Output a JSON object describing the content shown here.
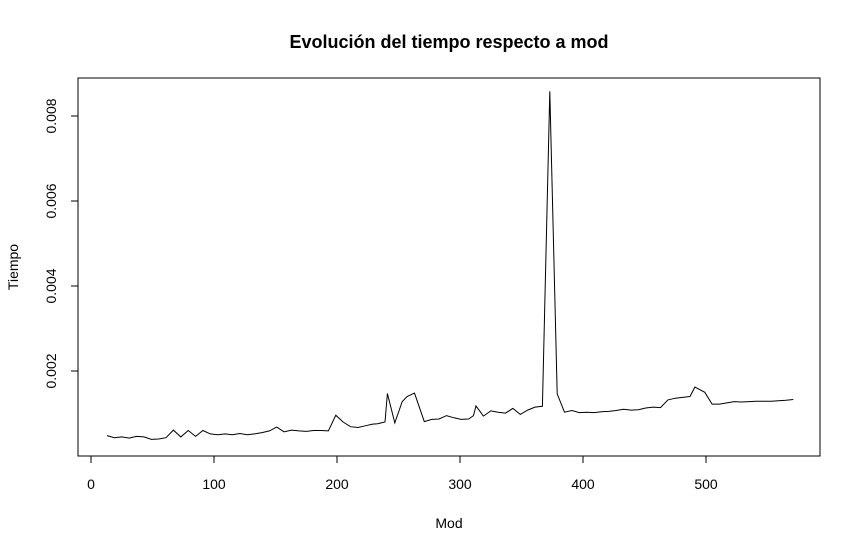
{
  "chart_data": {
    "type": "line",
    "title": "Evolución del tiempo respecto a mod",
    "xlabel": "Mod",
    "ylabel": "Tiempo",
    "xlim": [
      0,
      580
    ],
    "ylim": [
      0.0,
      0.009
    ],
    "x_ticks": [
      0,
      100,
      200,
      300,
      400,
      500
    ],
    "x_tick_labels": [
      "0",
      "100",
      "200",
      "300",
      "400",
      "500"
    ],
    "y_ticks": [
      0.002,
      0.004,
      0.006,
      0.008
    ],
    "y_tick_labels": [
      "0.002",
      "0.004",
      "0.006",
      "0.008"
    ],
    "grid": false,
    "series": [
      {
        "color": "#000000",
        "x": [
          13,
          19,
          25,
          31,
          37,
          43,
          49,
          55,
          61,
          67,
          73,
          79,
          85,
          91,
          97,
          103,
          109,
          115,
          121,
          127,
          133,
          139,
          145,
          151,
          157,
          163,
          169,
          175,
          181,
          187,
          193,
          199,
          205,
          211,
          217,
          223,
          229,
          233,
          239,
          241,
          247,
          253,
          257,
          263,
          271,
          277,
          283,
          289,
          295,
          301,
          307,
          311,
          313,
          319,
          325,
          331,
          337,
          343,
          349,
          355,
          361,
          367,
          373,
          379,
          385,
          391,
          397,
          403,
          409,
          415,
          421,
          427,
          433,
          439,
          445,
          451,
          457,
          463,
          469,
          475,
          481,
          487,
          491,
          499,
          505,
          511,
          517,
          523,
          529,
          535,
          541,
          547,
          553,
          559,
          565,
          571
        ],
        "y": [
          0.00048,
          0.00043,
          0.00045,
          0.00042,
          0.00046,
          0.00045,
          0.00039,
          0.0004,
          0.00043,
          0.00061,
          0.00045,
          0.0006,
          0.00046,
          0.0006,
          0.00052,
          0.0005,
          0.00052,
          0.0005,
          0.00053,
          0.0005,
          0.00052,
          0.00055,
          0.00059,
          0.00068,
          0.00057,
          0.00061,
          0.00059,
          0.00058,
          0.0006,
          0.0006,
          0.00059,
          0.00096,
          0.0008,
          0.00069,
          0.00067,
          0.00071,
          0.00075,
          0.00076,
          0.0008,
          0.00147,
          0.00078,
          0.00128,
          0.0014,
          0.00148,
          0.00081,
          0.00086,
          0.00087,
          0.00095,
          0.0009,
          0.00086,
          0.00087,
          0.00095,
          0.00118,
          0.00094,
          0.00106,
          0.00103,
          0.00101,
          0.00112,
          0.00098,
          0.00108,
          0.00115,
          0.00117,
          0.00858,
          0.00146,
          0.00103,
          0.00107,
          0.00102,
          0.00103,
          0.00102,
          0.00104,
          0.00105,
          0.00107,
          0.0011,
          0.00108,
          0.00109,
          0.00113,
          0.00115,
          0.00114,
          0.00132,
          0.00136,
          0.00138,
          0.0014,
          0.00162,
          0.0015,
          0.00122,
          0.00122,
          0.00125,
          0.00128,
          0.00127,
          0.00128,
          0.00129,
          0.00129,
          0.00129,
          0.0013,
          0.00131,
          0.00133
        ]
      }
    ]
  }
}
